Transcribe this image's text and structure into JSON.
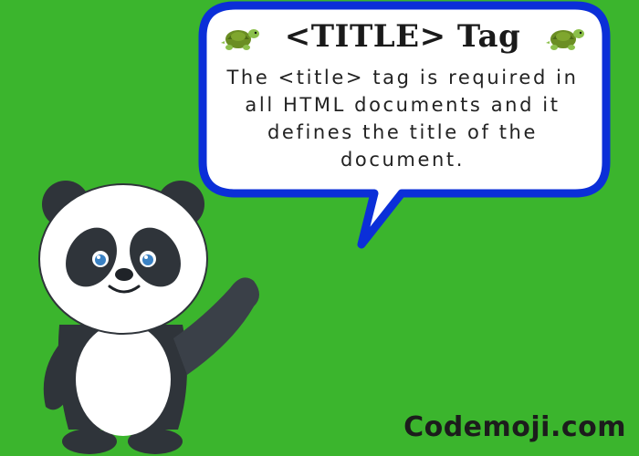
{
  "speech_bubble": {
    "title": "<TITLE> Tag",
    "body": "The <title> tag is required in all HTML documents and it defines the title of the document.",
    "border_color": "#0b2fd8",
    "left_icon": "turtle-icon",
    "right_icon": "turtle-icon"
  },
  "brand": {
    "text": "Codemoji.com"
  },
  "mascot": {
    "icon": "panda"
  },
  "colors": {
    "background": "#3bb52d",
    "bubble_fill": "#ffffff"
  }
}
